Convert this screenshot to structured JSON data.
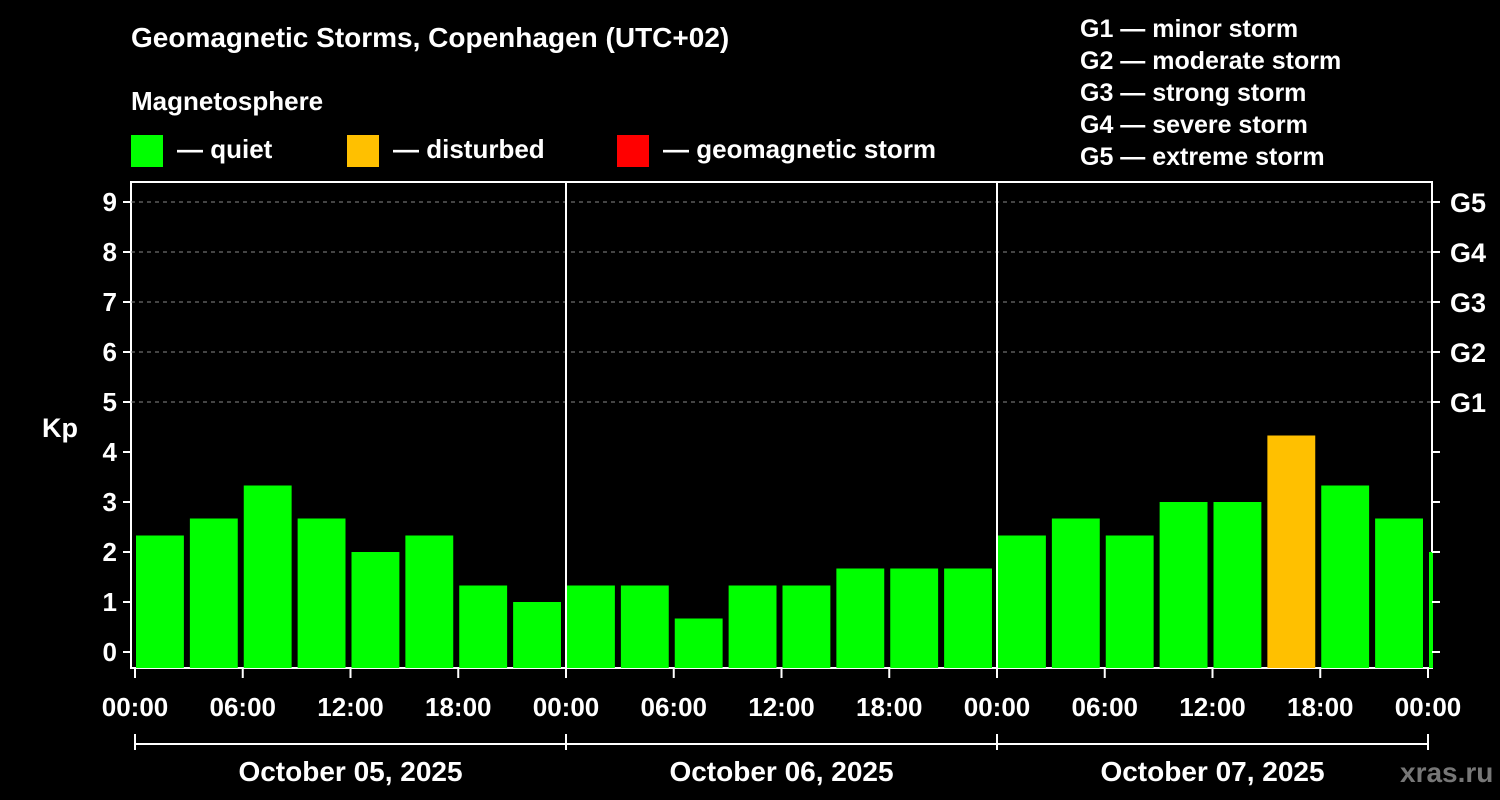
{
  "header": {
    "title": "Geomagnetic Storms, Copenhagen (UTC+02)",
    "subtitle": "Magnetosphere"
  },
  "legend": [
    {
      "label": "— quiet",
      "color": "#00ff00"
    },
    {
      "label": "— disturbed",
      "color": "#ffc000"
    },
    {
      "label": "— geomagnetic storm",
      "color": "#ff0000"
    }
  ],
  "storm_scale": [
    "G1 — minor storm",
    "G2 — moderate storm",
    "G3 — strong storm",
    "G4 — severe storm",
    "G5 — extreme storm"
  ],
  "source": "xras.ru",
  "chart_data": {
    "type": "bar",
    "ylabel": "Kp",
    "ylim": [
      0,
      9
    ],
    "yticks": [
      "0",
      "1",
      "2",
      "3",
      "4",
      "5",
      "6",
      "7",
      "8",
      "9"
    ],
    "right_ticks": [
      {
        "value": 5,
        "label": "G1"
      },
      {
        "value": 6,
        "label": "G2"
      },
      {
        "value": 7,
        "label": "G3"
      },
      {
        "value": 8,
        "label": "G4"
      },
      {
        "value": 9,
        "label": "G5"
      }
    ],
    "grid": "dashed horizontal lines at 5-9",
    "xticks": [
      "00:00",
      "06:00",
      "12:00",
      "18:00",
      "00:00",
      "06:00",
      "12:00",
      "18:00",
      "00:00",
      "06:00",
      "12:00",
      "18:00",
      "00:00"
    ],
    "days": [
      "October 05, 2025",
      "October 06, 2025",
      "October 07, 2025"
    ],
    "bars": [
      {
        "start_hour": 0,
        "kp": 2.33,
        "status": "quiet"
      },
      {
        "start_hour": 3,
        "kp": 2.67,
        "status": "quiet"
      },
      {
        "start_hour": 6,
        "kp": 3.33,
        "status": "quiet"
      },
      {
        "start_hour": 9,
        "kp": 2.67,
        "status": "quiet"
      },
      {
        "start_hour": 12,
        "kp": 2.0,
        "status": "quiet"
      },
      {
        "start_hour": 15,
        "kp": 2.33,
        "status": "quiet"
      },
      {
        "start_hour": 18,
        "kp": 1.33,
        "status": "quiet"
      },
      {
        "start_hour": 21,
        "kp": 1.0,
        "status": "quiet"
      },
      {
        "start_hour": 24,
        "kp": 1.33,
        "status": "quiet"
      },
      {
        "start_hour": 27,
        "kp": 1.33,
        "status": "quiet"
      },
      {
        "start_hour": 30,
        "kp": 0.67,
        "status": "quiet"
      },
      {
        "start_hour": 33,
        "kp": 1.33,
        "status": "quiet"
      },
      {
        "start_hour": 36,
        "kp": 1.33,
        "status": "quiet"
      },
      {
        "start_hour": 39,
        "kp": 1.67,
        "status": "quiet"
      },
      {
        "start_hour": 42,
        "kp": 1.67,
        "status": "quiet"
      },
      {
        "start_hour": 45,
        "kp": 1.67,
        "status": "quiet"
      },
      {
        "start_hour": 48,
        "kp": 2.33,
        "status": "quiet"
      },
      {
        "start_hour": 51,
        "kp": 2.67,
        "status": "quiet"
      },
      {
        "start_hour": 54,
        "kp": 2.33,
        "status": "quiet"
      },
      {
        "start_hour": 57,
        "kp": 3.0,
        "status": "quiet"
      },
      {
        "start_hour": 60,
        "kp": 3.0,
        "status": "quiet"
      },
      {
        "start_hour": 63,
        "kp": 4.33,
        "status": "disturbed"
      },
      {
        "start_hour": 66,
        "kp": 3.33,
        "status": "quiet"
      },
      {
        "start_hour": 69,
        "kp": 2.67,
        "status": "quiet"
      },
      {
        "start_hour": 72,
        "kp": 2.0,
        "status": "quiet"
      }
    ],
    "status_colors": {
      "quiet": "#00ff00",
      "disturbed": "#ffc000",
      "storm": "#ff0000"
    }
  }
}
